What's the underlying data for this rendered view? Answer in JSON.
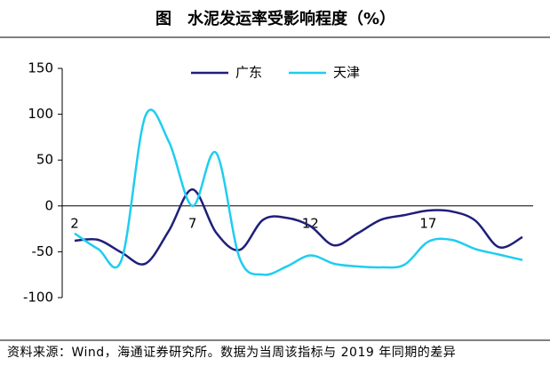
{
  "chart_data": {
    "type": "line",
    "title": "图　水泥发运率受影响程度（%）",
    "note": "资料来源：Wind，海通证券研究所。数据为当周该指标与 2019 年同期的差异",
    "categories": [
      2,
      null,
      null,
      null,
      null,
      7,
      null,
      null,
      null,
      null,
      12,
      null,
      null,
      null,
      null,
      17,
      null,
      null,
      null,
      null
    ],
    "series": [
      {
        "name": "广东",
        "color": "#1f1f7a",
        "values": [
          -38,
          -37,
          -51,
          -63,
          -27,
          18,
          -29,
          -48,
          -15,
          -13,
          -22,
          -43,
          -30,
          -15,
          -10,
          -5,
          -6,
          -16,
          -45,
          -34
        ]
      },
      {
        "name": "天津",
        "color": "#1ecdf0",
        "values": [
          -30,
          -47,
          -58,
          98,
          70,
          0,
          58,
          -57,
          -75,
          -66,
          -54,
          -63,
          -66,
          -67,
          -64,
          -39,
          -37,
          -47,
          -53,
          -59
        ]
      }
    ],
    "ylim": [
      -100,
      150
    ],
    "yticks": [
      -100,
      -50,
      0,
      50,
      100,
      150
    ],
    "legend": "top"
  }
}
